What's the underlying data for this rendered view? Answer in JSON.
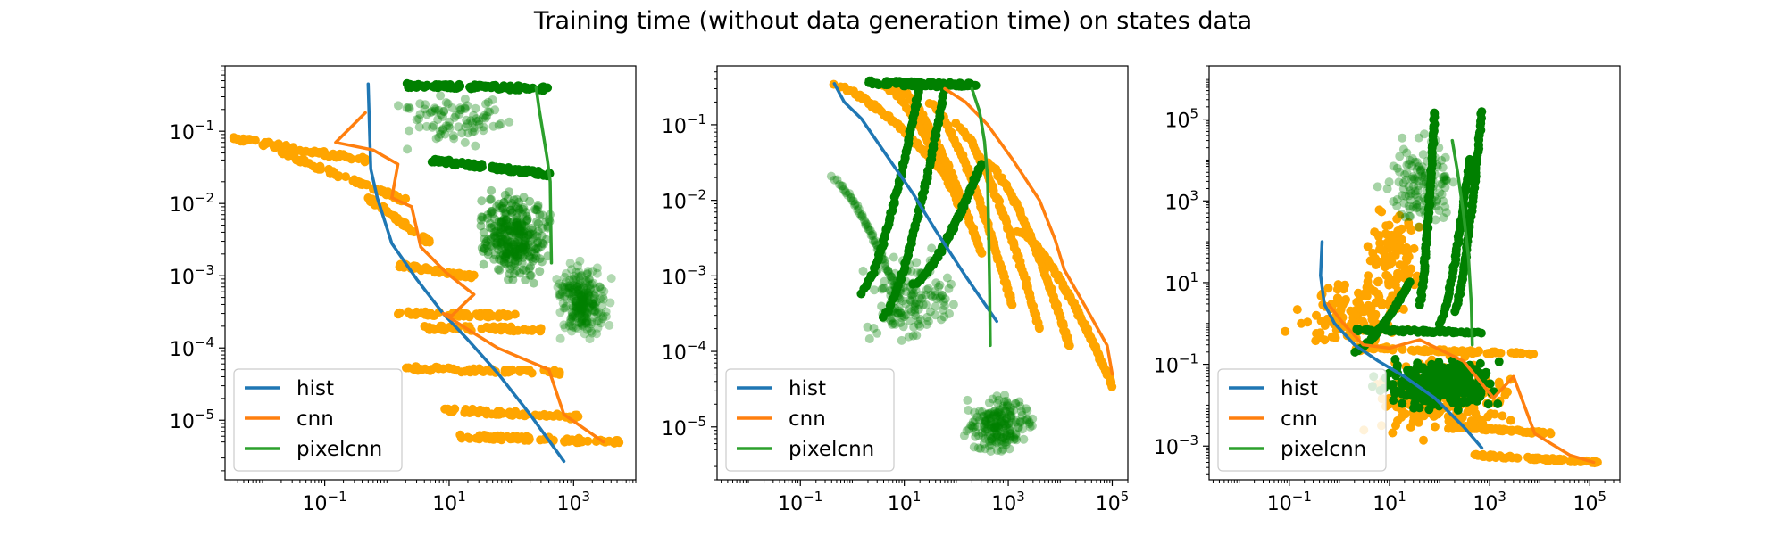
{
  "figure": {
    "title": "Training time (without data generation time) on states data"
  },
  "colors": {
    "hist": "#1f77b4",
    "cnn": "#ff7f0e",
    "pixelcnn": "#2ca02c",
    "cnn_scatter": "#ffa500",
    "pixelcnn_scatter": "#008000"
  },
  "chart_data": [
    {
      "type": "scatter",
      "title": "",
      "xlabel": "",
      "ylabel": "",
      "xscale": "log",
      "yscale": "log",
      "xlim": [
        0.0025,
        10000
      ],
      "ylim": [
        1.5e-06,
        0.8
      ],
      "xticks": [
        {
          "base": "10",
          "exp": "−1",
          "value": 0.1
        },
        {
          "base": "10",
          "exp": "1",
          "value": 10
        },
        {
          "base": "10",
          "exp": "3",
          "value": 1000
        }
      ],
      "yticks": [
        {
          "base": "10",
          "exp": "−5",
          "value": 1e-05
        },
        {
          "base": "10",
          "exp": "−4",
          "value": 0.0001
        },
        {
          "base": "10",
          "exp": "−3",
          "value": 0.001
        },
        {
          "base": "10",
          "exp": "−2",
          "value": 0.01
        },
        {
          "base": "10",
          "exp": "−1",
          "value": 0.1
        }
      ],
      "legend": {
        "position": "lower-left",
        "entries": [
          "hist",
          "cnn",
          "pixelcnn"
        ]
      },
      "series": [
        {
          "name": "hist",
          "kind": "line",
          "color_key": "hist",
          "x": [
            0.5,
            0.55,
            0.7,
            1.2,
            3,
            8,
            20,
            60,
            200,
            700
          ],
          "y": [
            0.45,
            0.03,
            0.012,
            0.0028,
            0.0009,
            0.0003,
            0.00013,
            4.5e-05,
            1.2e-05,
            2.7e-06
          ]
        },
        {
          "name": "cnn",
          "kind": "line",
          "color_key": "cnn",
          "x": [
            0.45,
            0.15,
            0.6,
            1.5,
            1.2,
            2.5,
            3.5,
            9,
            25,
            11,
            8,
            20,
            60,
            400,
            700,
            3000
          ],
          "y": [
            0.18,
            0.07,
            0.055,
            0.035,
            0.012,
            0.009,
            0.0025,
            0.0011,
            0.00055,
            0.00028,
            0.0003,
            0.00018,
            0.0001,
            5e-05,
            1.2e-05,
            5e-06
          ]
        },
        {
          "name": "pixelcnn",
          "kind": "line",
          "color_key": "pixelcnn",
          "x": [
            250,
            280,
            320,
            380,
            420,
            430,
            440
          ],
          "y": [
            0.4,
            0.2,
            0.1,
            0.04,
            0.02,
            0.005,
            0.0015
          ]
        }
      ],
      "scatter_clusters": [
        {
          "color_key": "cnn_scatter",
          "alpha": 1.0,
          "kind": "band",
          "x_range": [
            0.003,
            0.45
          ],
          "y_range": [
            0.08,
            0.04
          ],
          "n": 70
        },
        {
          "color_key": "cnn_scatter",
          "alpha": 1.0,
          "kind": "band",
          "x_range": [
            0.02,
            2
          ],
          "y_range": [
            0.05,
            0.011
          ],
          "n": 70
        },
        {
          "color_key": "cnn_scatter",
          "alpha": 1.0,
          "kind": "band",
          "x_range": [
            0.5,
            5
          ],
          "y_range": [
            0.012,
            0.0028
          ],
          "n": 45
        },
        {
          "color_key": "cnn_scatter",
          "alpha": 1.0,
          "kind": "band",
          "x_range": [
            1.5,
            25
          ],
          "y_range": [
            0.0014,
            0.00095
          ],
          "n": 45
        },
        {
          "color_key": "cnn_scatter",
          "alpha": 1.0,
          "kind": "band",
          "x_range": [
            1.5,
            120
          ],
          "y_range": [
            0.0003,
            0.00028
          ],
          "n": 55
        },
        {
          "color_key": "cnn_scatter",
          "alpha": 1.0,
          "kind": "band",
          "x_range": [
            4,
            300
          ],
          "y_range": [
            0.00019,
            0.00018
          ],
          "n": 55
        },
        {
          "color_key": "cnn_scatter",
          "alpha": 1.0,
          "kind": "band",
          "x_range": [
            2,
            600
          ],
          "y_range": [
            5.2e-05,
            4.6e-05
          ],
          "n": 65
        },
        {
          "color_key": "cnn_scatter",
          "alpha": 1.0,
          "kind": "band",
          "x_range": [
            8,
            1200
          ],
          "y_range": [
            1.4e-05,
            1.1e-05
          ],
          "n": 65
        },
        {
          "color_key": "cnn_scatter",
          "alpha": 1.0,
          "kind": "band",
          "x_range": [
            15,
            5500
          ],
          "y_range": [
            6e-06,
            5e-06
          ],
          "n": 75
        },
        {
          "color_key": "pixelcnn_scatter",
          "alpha": 0.35,
          "kind": "cloud",
          "x_range": [
            0.7,
            300
          ],
          "y_range": [
            0.05,
            0.45
          ],
          "n": 90
        },
        {
          "color_key": "pixelcnn_scatter",
          "alpha": 1.0,
          "kind": "band",
          "x_range": [
            2,
            400
          ],
          "y_range": [
            0.43,
            0.39
          ],
          "n": 90
        },
        {
          "color_key": "pixelcnn_scatter",
          "alpha": 1.0,
          "kind": "band",
          "x_range": [
            5,
            450
          ],
          "y_range": [
            0.04,
            0.025
          ],
          "n": 90
        },
        {
          "color_key": "pixelcnn_scatter",
          "alpha": 0.4,
          "kind": "cloud",
          "x_range": [
            20,
            600
          ],
          "y_range": [
            0.0006,
            0.02
          ],
          "n": 320
        },
        {
          "color_key": "pixelcnn_scatter",
          "alpha": 0.3,
          "kind": "cloud",
          "x_range": [
            400,
            5000
          ],
          "y_range": [
            0.0001,
            0.002
          ],
          "n": 260
        }
      ]
    },
    {
      "type": "scatter",
      "title": "",
      "xlabel": "",
      "ylabel": "",
      "xscale": "log",
      "yscale": "log",
      "xlim": [
        0.0025,
        200000
      ],
      "ylim": [
        2e-06,
        0.6
      ],
      "xticks": [
        {
          "base": "10",
          "exp": "−1",
          "value": 0.1
        },
        {
          "base": "10",
          "exp": "1",
          "value": 10
        },
        {
          "base": "10",
          "exp": "3",
          "value": 1000
        },
        {
          "base": "10",
          "exp": "5",
          "value": 100000
        }
      ],
      "yticks": [
        {
          "base": "10",
          "exp": "−5",
          "value": 1e-05
        },
        {
          "base": "10",
          "exp": "−4",
          "value": 0.0001
        },
        {
          "base": "10",
          "exp": "−3",
          "value": 0.001
        },
        {
          "base": "10",
          "exp": "−2",
          "value": 0.01
        },
        {
          "base": "10",
          "exp": "−1",
          "value": 0.1
        }
      ],
      "legend": {
        "position": "lower-left",
        "entries": [
          "hist",
          "cnn",
          "pixelcnn"
        ]
      },
      "series": [
        {
          "name": "hist",
          "kind": "line",
          "color_key": "hist",
          "x": [
            0.45,
            0.7,
            1.5,
            3,
            6,
            15,
            40,
            150,
            600
          ],
          "y": [
            0.35,
            0.2,
            0.12,
            0.06,
            0.03,
            0.012,
            0.004,
            0.001,
            0.00025
          ]
        },
        {
          "name": "cnn",
          "kind": "line",
          "color_key": "cnn",
          "x": [
            60,
            150,
            400,
            1200,
            4000,
            8000,
            12000,
            30000,
            80000,
            100000
          ],
          "y": [
            0.3,
            0.2,
            0.1,
            0.035,
            0.01,
            0.003,
            0.0012,
            0.0004,
            0.00012,
            5e-05
          ]
        },
        {
          "name": "pixelcnn",
          "kind": "line",
          "color_key": "pixelcnn",
          "x": [
            200,
            280,
            350,
            400,
            420,
            440,
            450
          ],
          "y": [
            0.3,
            0.15,
            0.06,
            0.02,
            0.004,
            0.0006,
            0.00012
          ]
        }
      ],
      "scatter_clusters": [
        {
          "color_key": "cnn_scatter",
          "alpha": 1.0,
          "kind": "curve",
          "x_range": [
            0.45,
            80
          ],
          "y_range": [
            0.33,
            0.018
          ],
          "n": 70
        },
        {
          "color_key": "cnn_scatter",
          "alpha": 1.0,
          "kind": "curve",
          "x_range": [
            4,
            120
          ],
          "y_range": [
            0.33,
            0.008
          ],
          "n": 70
        },
        {
          "color_key": "cnn_scatter",
          "alpha": 1.0,
          "kind": "curve",
          "x_range": [
            8,
            300
          ],
          "y_range": [
            0.3,
            0.002
          ],
          "n": 80
        },
        {
          "color_key": "cnn_scatter",
          "alpha": 1.0,
          "kind": "curve",
          "x_range": [
            30,
            1200
          ],
          "y_range": [
            0.2,
            0.0004
          ],
          "n": 90
        },
        {
          "color_key": "cnn_scatter",
          "alpha": 1.0,
          "kind": "curve",
          "x_range": [
            100,
            4000
          ],
          "y_range": [
            0.1,
            0.0002
          ],
          "n": 90
        },
        {
          "color_key": "cnn_scatter",
          "alpha": 1.0,
          "kind": "curve",
          "x_range": [
            400,
            15000
          ],
          "y_range": [
            0.03,
            0.00012
          ],
          "n": 90
        },
        {
          "color_key": "cnn_scatter",
          "alpha": 1.0,
          "kind": "curve",
          "x_range": [
            1500,
            100000
          ],
          "y_range": [
            0.004,
            3.5e-05
          ],
          "n": 100
        },
        {
          "color_key": "pixelcnn_scatter",
          "alpha": 1.0,
          "kind": "band",
          "x_range": [
            2,
            300
          ],
          "y_range": [
            0.36,
            0.33
          ],
          "n": 90
        },
        {
          "color_key": "pixelcnn_scatter",
          "alpha": 1.0,
          "kind": "curve",
          "x_range": [
            1.5,
            20
          ],
          "y_range": [
            0.0006,
            0.33
          ],
          "n": 80
        },
        {
          "color_key": "pixelcnn_scatter",
          "alpha": 1.0,
          "kind": "curve",
          "x_range": [
            4,
            60
          ],
          "y_range": [
            0.0003,
            0.3
          ],
          "n": 80
        },
        {
          "color_key": "pixelcnn_scatter",
          "alpha": 1.0,
          "kind": "curve",
          "x_range": [
            15,
            300
          ],
          "y_range": [
            0.0008,
            0.03
          ],
          "n": 80
        },
        {
          "color_key": "pixelcnn_scatter",
          "alpha": 0.35,
          "kind": "curve",
          "x_range": [
            0.4,
            8
          ],
          "y_range": [
            0.02,
            0.0005
          ],
          "n": 70
        },
        {
          "color_key": "pixelcnn_scatter",
          "alpha": 0.35,
          "kind": "cloud",
          "x_range": [
            1,
            200
          ],
          "y_range": [
            8e-05,
            0.003
          ],
          "n": 150
        },
        {
          "color_key": "pixelcnn_scatter",
          "alpha": 0.35,
          "kind": "cloud",
          "x_range": [
            100,
            4000
          ],
          "y_range": [
            4e-06,
            3e-05
          ],
          "n": 200
        }
      ]
    },
    {
      "type": "scatter",
      "title": "",
      "xlabel": "",
      "ylabel": "",
      "xscale": "log",
      "yscale": "log",
      "xlim": [
        0.0025,
        400000
      ],
      "ylim": [
        0.00015,
        2000000
      ],
      "xticks": [
        {
          "base": "10",
          "exp": "−1",
          "value": 0.1
        },
        {
          "base": "10",
          "exp": "1",
          "value": 10
        },
        {
          "base": "10",
          "exp": "3",
          "value": 1000
        },
        {
          "base": "10",
          "exp": "5",
          "value": 100000
        }
      ],
      "yticks": [
        {
          "base": "10",
          "exp": "−3",
          "value": 0.001
        },
        {
          "base": "10",
          "exp": "−1",
          "value": 0.1
        },
        {
          "base": "10",
          "exp": "1",
          "value": 10
        },
        {
          "base": "10",
          "exp": "3",
          "value": 1000
        },
        {
          "base": "10",
          "exp": "5",
          "value": 100000
        }
      ],
      "legend": {
        "position": "lower-left",
        "entries": [
          "hist",
          "cnn",
          "pixelcnn"
        ]
      },
      "series": [
        {
          "name": "hist",
          "kind": "line",
          "color_key": "hist",
          "x": [
            0.45,
            0.42,
            0.5,
            0.8,
            2,
            6,
            20,
            80,
            300,
            700
          ],
          "y": [
            100,
            15,
            3,
            1,
            0.3,
            0.12,
            0.05,
            0.015,
            0.003,
            0.0009
          ]
        },
        {
          "name": "cnn",
          "kind": "line",
          "color_key": "cnn",
          "x": [
            0.6,
            1.2,
            3,
            10,
            40,
            300,
            1200,
            3000,
            8000,
            40000,
            120000
          ],
          "y": [
            3,
            1,
            0.3,
            0.25,
            0.4,
            0.12,
            0.015,
            0.05,
            0.002,
            0.0006,
            0.0004
          ]
        },
        {
          "name": "pixelcnn",
          "kind": "line",
          "color_key": "pixelcnn",
          "x": [
            180,
            230,
            300,
            380,
            430,
            450
          ],
          "y": [
            30000,
            5000,
            500,
            40,
            3,
            0.3
          ]
        }
      ],
      "scatter_clusters": [
        {
          "color_key": "cnn_scatter",
          "alpha": 1.0,
          "kind": "cloud",
          "x_range": [
            0.05,
            60
          ],
          "y_range": [
            0.1,
            20
          ],
          "n": 110
        },
        {
          "color_key": "cnn_scatter",
          "alpha": 1.0,
          "kind": "cloud",
          "x_range": [
            2,
            60
          ],
          "y_range": [
            0.8,
            3000
          ],
          "n": 90
        },
        {
          "color_key": "cnn_scatter",
          "alpha": 1.0,
          "kind": "cloud",
          "x_range": [
            2,
            6000
          ],
          "y_range": [
            0.001,
            0.3
          ],
          "n": 220
        },
        {
          "color_key": "cnn_scatter",
          "alpha": 1.0,
          "kind": "band",
          "x_range": [
            500,
            150000
          ],
          "y_range": [
            0.0006,
            0.0004
          ],
          "n": 70
        },
        {
          "color_key": "cnn_scatter",
          "alpha": 1.0,
          "kind": "band",
          "x_range": [
            200,
            20000
          ],
          "y_range": [
            0.003,
            0.002
          ],
          "n": 60
        },
        {
          "color_key": "cnn_scatter",
          "alpha": 1.0,
          "kind": "band",
          "x_range": [
            2,
            8000
          ],
          "y_range": [
            0.25,
            0.18
          ],
          "n": 80
        },
        {
          "color_key": "pixelcnn_scatter",
          "alpha": 0.35,
          "kind": "cloud",
          "x_range": [
            5,
            300
          ],
          "y_range": [
            50,
            100000
          ],
          "n": 130
        },
        {
          "color_key": "pixelcnn_scatter",
          "alpha": 1.0,
          "kind": "curve",
          "x_range": [
            40,
            80
          ],
          "y_range": [
            3,
            150000
          ],
          "n": 70
        },
        {
          "color_key": "pixelcnn_scatter",
          "alpha": 1.0,
          "kind": "curve",
          "x_range": [
            200,
            700
          ],
          "y_range": [
            2,
            150000
          ],
          "n": 70
        },
        {
          "color_key": "pixelcnn_scatter",
          "alpha": 1.0,
          "kind": "curve",
          "x_range": [
            100,
            400
          ],
          "y_range": [
            1,
            10000
          ],
          "n": 60
        },
        {
          "color_key": "pixelcnn_scatter",
          "alpha": 1.0,
          "kind": "band",
          "x_range": [
            2,
            700
          ],
          "y_range": [
            0.7,
            0.6
          ],
          "n": 80
        },
        {
          "color_key": "pixelcnn_scatter",
          "alpha": 1.0,
          "kind": "cloud",
          "x_range": [
            2,
            4000
          ],
          "y_range": [
            0.006,
            0.2
          ],
          "n": 320
        },
        {
          "color_key": "pixelcnn_scatter",
          "alpha": 1.0,
          "kind": "curve",
          "x_range": [
            2,
            25
          ],
          "y_range": [
            0.2,
            10
          ],
          "n": 60
        }
      ]
    }
  ]
}
